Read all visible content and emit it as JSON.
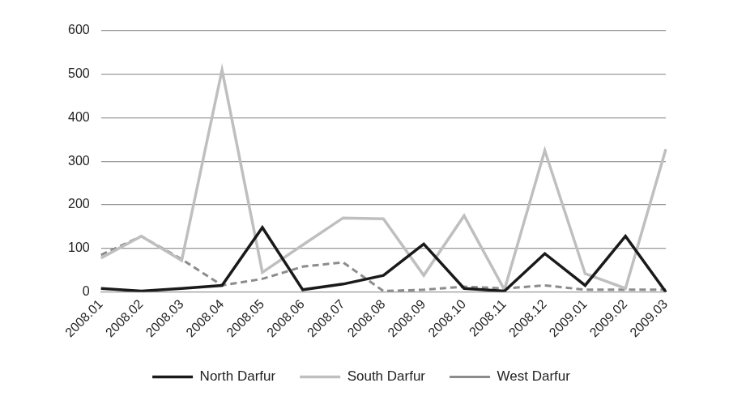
{
  "chart_data": {
    "type": "line",
    "categories": [
      "2008.01",
      "2008.02",
      "2008.03",
      "2008.04",
      "2008.05",
      "2008.06",
      "2008.07",
      "2008.08",
      "2008.09",
      "2008.10",
      "2008.11",
      "2008.12",
      "2009.01",
      "2009.02",
      "2009.03"
    ],
    "series": [
      {
        "name": "North Darfur",
        "color": "#1a1a1a",
        "line_style": "solid",
        "values": [
          8,
          2,
          8,
          15,
          148,
          5,
          18,
          38,
          110,
          8,
          2,
          88,
          15,
          128,
          0
        ]
      },
      {
        "name": "South Darfur",
        "color": "#bfbfbf",
        "line_style": "solid",
        "values": [
          78,
          128,
          72,
          510,
          45,
          108,
          170,
          168,
          38,
          175,
          5,
          325,
          42,
          8,
          328
        ]
      },
      {
        "name": "West Darfur",
        "color": "#8c8c8c",
        "line_style": "dashed",
        "values": [
          85,
          128,
          75,
          15,
          30,
          58,
          68,
          2,
          5,
          12,
          8,
          15,
          5,
          5,
          5
        ]
      }
    ],
    "ylim": [
      0,
      600
    ],
    "yticks": [
      0,
      100,
      200,
      300,
      400,
      500,
      600
    ],
    "grid": true,
    "legend": "bottom"
  }
}
